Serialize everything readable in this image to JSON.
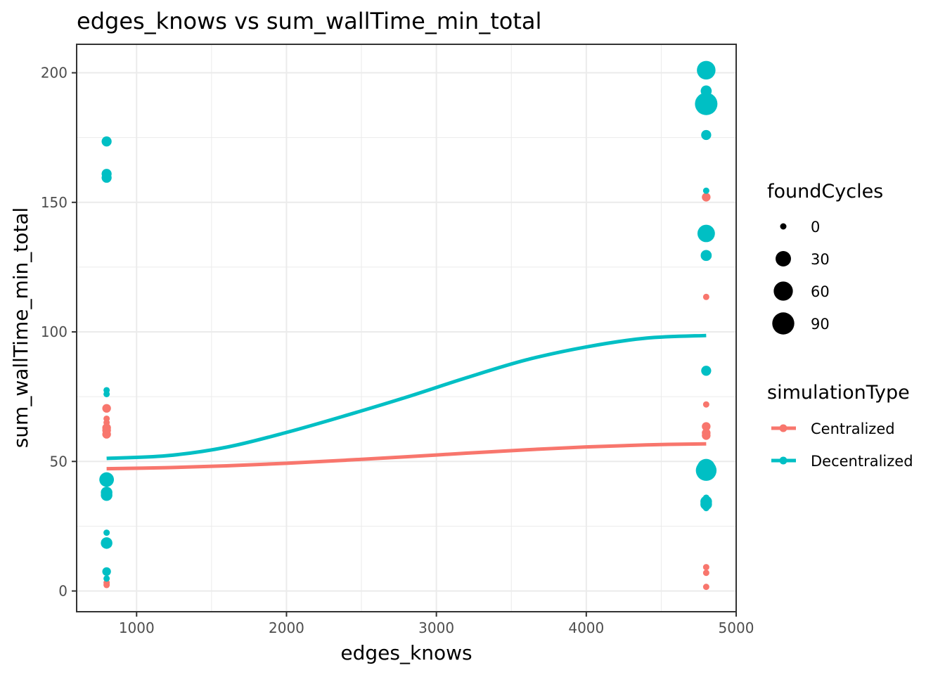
{
  "chart_data": {
    "type": "scatter",
    "title": "edges_knows  vs  sum_wallTime_min_total",
    "xlabel": "edges_knows",
    "ylabel": "sum_wallTime_min_total",
    "xlim": [
      600,
      5000
    ],
    "ylim": [
      -8,
      211
    ],
    "x_ticks": [
      1000,
      2000,
      3000,
      4000,
      5000
    ],
    "x_minor_ticks": [
      1500,
      2500,
      3500,
      4500
    ],
    "y_ticks": [
      0,
      50,
      100,
      150,
      200
    ],
    "y_minor_ticks": [
      25,
      75,
      125,
      175
    ],
    "x_tick_labels": [
      "1000",
      "2000",
      "3000",
      "4000",
      "5000"
    ],
    "y_tick_labels": [
      "0",
      "50",
      "100",
      "150",
      "200"
    ],
    "grid": true,
    "size_legend": {
      "title": "foundCycles",
      "entries": [
        {
          "value": 0,
          "label": "0"
        },
        {
          "value": 30,
          "label": "30"
        },
        {
          "value": 60,
          "label": "60"
        },
        {
          "value": 90,
          "label": "90"
        }
      ]
    },
    "color_legend": {
      "title": "simulationType",
      "placement": "right"
    },
    "series": [
      {
        "name": "Centralized",
        "color": "#F8766D",
        "points": [
          {
            "x": 800,
            "y": 70.5,
            "size": 2
          },
          {
            "x": 800,
            "y": 66.5,
            "size": 0
          },
          {
            "x": 800,
            "y": 65,
            "size": 0
          },
          {
            "x": 800,
            "y": 63,
            "size": 2
          },
          {
            "x": 800,
            "y": 62,
            "size": 2
          },
          {
            "x": 800,
            "y": 60.5,
            "size": 2
          },
          {
            "x": 800,
            "y": 3.2,
            "size": 0
          },
          {
            "x": 800,
            "y": 2.3,
            "size": 0
          },
          {
            "x": 4800,
            "y": 152,
            "size": 2
          },
          {
            "x": 4800,
            "y": 113.5,
            "size": 0
          },
          {
            "x": 4800,
            "y": 72,
            "size": 0
          },
          {
            "x": 4800,
            "y": 63.5,
            "size": 2
          },
          {
            "x": 4800,
            "y": 61,
            "size": 2
          },
          {
            "x": 4800,
            "y": 60,
            "size": 2
          },
          {
            "x": 4800,
            "y": 9.2,
            "size": 0
          },
          {
            "x": 4800,
            "y": 7,
            "size": 0
          },
          {
            "x": 4800,
            "y": 1.6,
            "size": 0
          }
        ],
        "trend": [
          {
            "x": 800,
            "y": 47.2
          },
          {
            "x": 1200,
            "y": 47.6
          },
          {
            "x": 1600,
            "y": 48.3
          },
          {
            "x": 2000,
            "y": 49.3
          },
          {
            "x": 2400,
            "y": 50.5
          },
          {
            "x": 2800,
            "y": 51.8
          },
          {
            "x": 3200,
            "y": 53.2
          },
          {
            "x": 3600,
            "y": 54.5
          },
          {
            "x": 4000,
            "y": 55.6
          },
          {
            "x": 4400,
            "y": 56.4
          },
          {
            "x": 4800,
            "y": 56.8
          }
        ]
      },
      {
        "name": "Decentralized",
        "color": "#00BFC4",
        "points": [
          {
            "x": 800,
            "y": 173.5,
            "size": 5
          },
          {
            "x": 800,
            "y": 161,
            "size": 5
          },
          {
            "x": 800,
            "y": 159.5,
            "size": 5
          },
          {
            "x": 800,
            "y": 77.5,
            "size": 0
          },
          {
            "x": 800,
            "y": 76,
            "size": 0
          },
          {
            "x": 800,
            "y": 43,
            "size": 25
          },
          {
            "x": 800,
            "y": 38,
            "size": 10
          },
          {
            "x": 800,
            "y": 37,
            "size": 10
          },
          {
            "x": 800,
            "y": 22.5,
            "size": 0
          },
          {
            "x": 800,
            "y": 18.5,
            "size": 10
          },
          {
            "x": 800,
            "y": 7.5,
            "size": 2
          },
          {
            "x": 800,
            "y": 4.8,
            "size": 0
          },
          {
            "x": 4800,
            "y": 201,
            "size": 55
          },
          {
            "x": 4800,
            "y": 193,
            "size": 8
          },
          {
            "x": 4800,
            "y": 188,
            "size": 95
          },
          {
            "x": 4800,
            "y": 176,
            "size": 5
          },
          {
            "x": 4800,
            "y": 154.5,
            "size": 0
          },
          {
            "x": 4800,
            "y": 138,
            "size": 45
          },
          {
            "x": 4800,
            "y": 129.5,
            "size": 8
          },
          {
            "x": 4800,
            "y": 85,
            "size": 5
          },
          {
            "x": 4800,
            "y": 47.5,
            "size": 50
          },
          {
            "x": 4800,
            "y": 46.5,
            "size": 75
          },
          {
            "x": 4800,
            "y": 36,
            "size": 0
          },
          {
            "x": 4800,
            "y": 34.5,
            "size": 10
          },
          {
            "x": 4800,
            "y": 33.5,
            "size": 10
          },
          {
            "x": 4800,
            "y": 32,
            "size": 0
          }
        ],
        "trend": [
          {
            "x": 800,
            "y": 51.2
          },
          {
            "x": 1200,
            "y": 52.2
          },
          {
            "x": 1600,
            "y": 55.5
          },
          {
            "x": 2000,
            "y": 61.2
          },
          {
            "x": 2400,
            "y": 67.8
          },
          {
            "x": 2800,
            "y": 74.8
          },
          {
            "x": 3200,
            "y": 82.3
          },
          {
            "x": 3600,
            "y": 89.2
          },
          {
            "x": 4000,
            "y": 94.2
          },
          {
            "x": 4400,
            "y": 97.6
          },
          {
            "x": 4800,
            "y": 98.6
          }
        ]
      }
    ]
  }
}
